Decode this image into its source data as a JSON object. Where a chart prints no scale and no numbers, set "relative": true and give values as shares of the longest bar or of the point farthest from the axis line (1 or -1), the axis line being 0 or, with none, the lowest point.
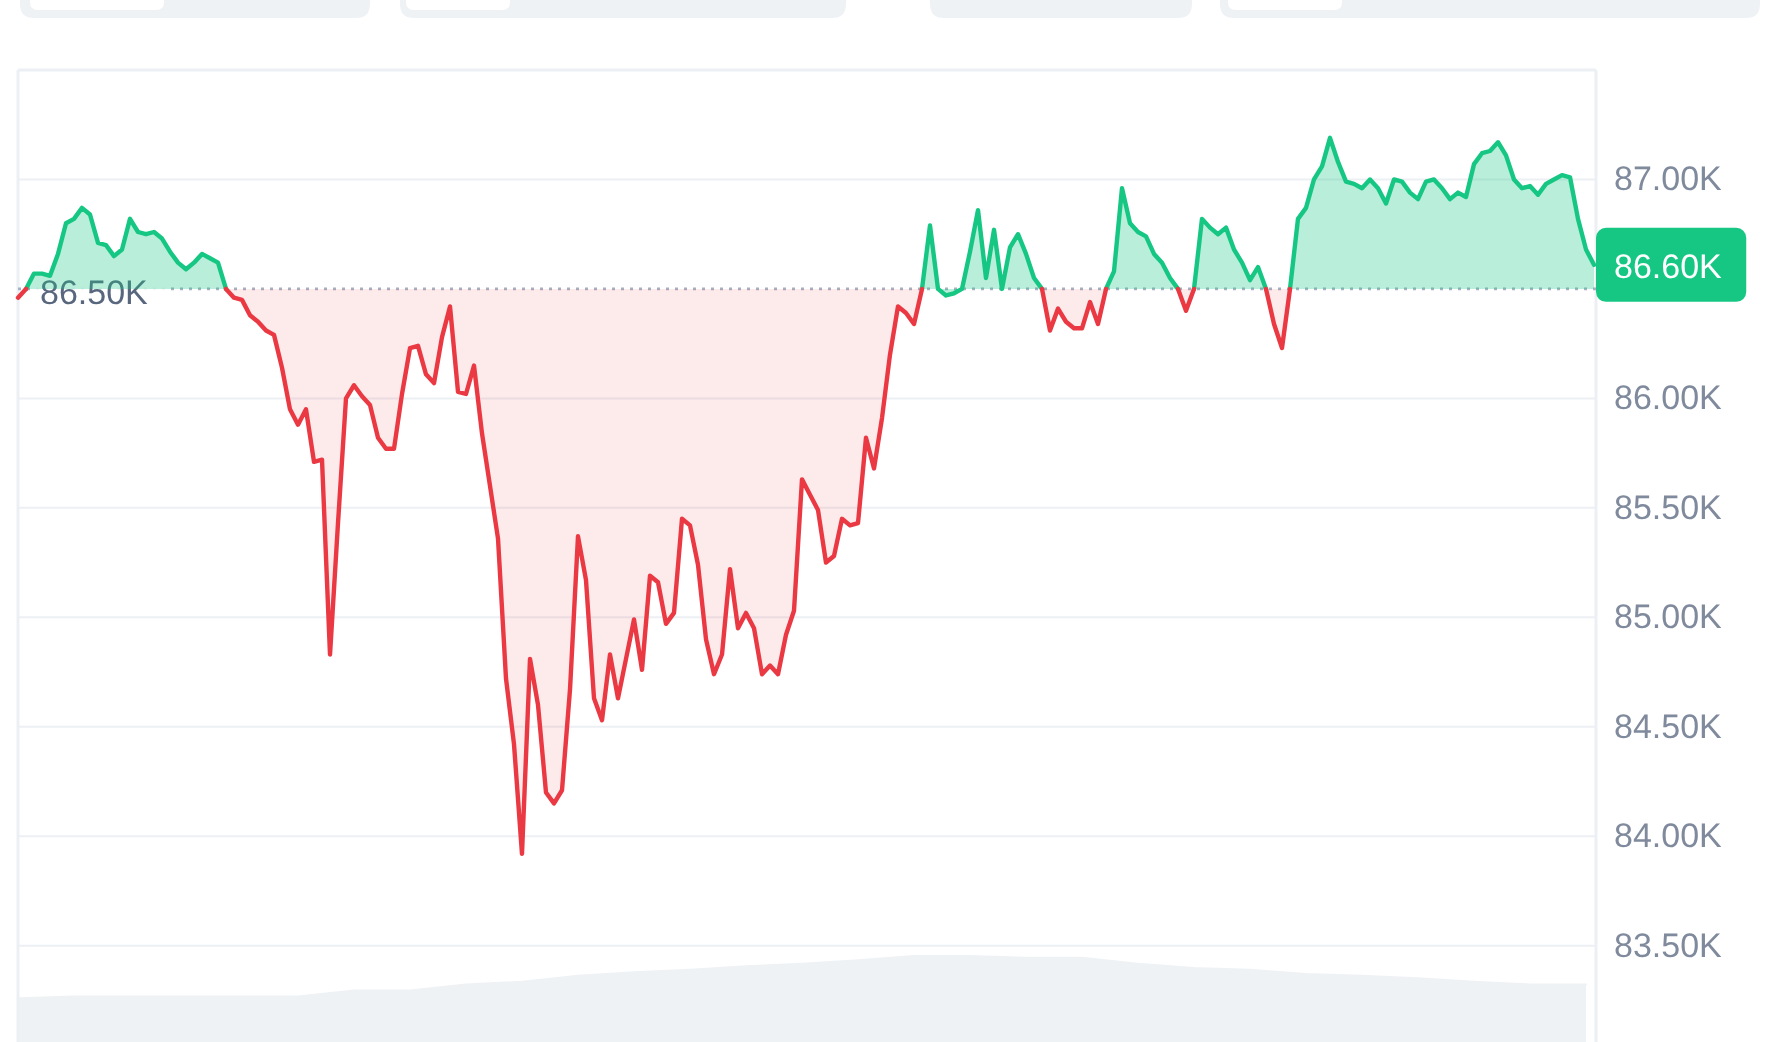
{
  "chart_data": [
    {
      "type": "area",
      "tick_labels": "y",
      "grid": "y",
      "categories": [
        null,
        null,
        null,
        null,
        null,
        null,
        null,
        null,
        null,
        null,
        null,
        null,
        null,
        null,
        null,
        null,
        null,
        null,
        null,
        null,
        null,
        null,
        null,
        null,
        null,
        null,
        null,
        null,
        null,
        null,
        null,
        null,
        null,
        null,
        null,
        null,
        null,
        null,
        null,
        null,
        null,
        null,
        null,
        null,
        null,
        null,
        null,
        null,
        null,
        null,
        null,
        null,
        null,
        null,
        null,
        null,
        null,
        null,
        null,
        null,
        null,
        null,
        null,
        null,
        null,
        null,
        null,
        null,
        null,
        null,
        null,
        null,
        null,
        null,
        null,
        null,
        null,
        null,
        null,
        null,
        null,
        null,
        null,
        null,
        null,
        null,
        null,
        null,
        null,
        null,
        null,
        null,
        null,
        null,
        null,
        null,
        null,
        null,
        null,
        null,
        null,
        null,
        null,
        null,
        null,
        null,
        null,
        null,
        null,
        null,
        null,
        null,
        null,
        null,
        null,
        null,
        null,
        null,
        null,
        null,
        null,
        null,
        null,
        null,
        null,
        null,
        null,
        null,
        null,
        null,
        null,
        null,
        null,
        null,
        null,
        null,
        null,
        null,
        null,
        null,
        null,
        null,
        null,
        null,
        null,
        null,
        null,
        null,
        null,
        null,
        null,
        null,
        null,
        null,
        null,
        null,
        null,
        null,
        null,
        null,
        null,
        null,
        null,
        null,
        null,
        null,
        null,
        null,
        null,
        null,
        null,
        null,
        null,
        null,
        null,
        null,
        null,
        null,
        null,
        null,
        null,
        null,
        null,
        null,
        null,
        null,
        null,
        null,
        null,
        null,
        null,
        null,
        null,
        null,
        null,
        null,
        null,
        null
      ],
      "series": [
        {
          "color": "#16c784",
          "values": [
            null,
            86500,
            86570,
            86570,
            86560,
            86660,
            86800,
            86820,
            86870,
            86840,
            86710,
            86700,
            86650,
            86680,
            86820,
            86760,
            86750,
            86760,
            86730,
            86670,
            86620,
            86590,
            86620,
            86660,
            86640,
            86620,
            86500,
            null,
            null,
            null,
            null,
            null,
            null,
            null,
            null,
            null,
            null,
            null,
            null,
            null,
            null,
            null,
            null,
            null,
            null,
            null,
            null,
            null,
            null,
            null,
            null,
            null,
            null,
            null,
            null,
            null,
            null,
            null,
            null,
            null,
            null,
            null,
            null,
            null,
            null,
            null,
            null,
            null,
            null,
            null,
            null,
            null,
            null,
            null,
            null,
            null,
            null,
            null,
            null,
            null,
            null,
            null,
            null,
            null,
            null,
            null,
            null,
            null,
            null,
            null,
            null,
            null,
            null,
            null,
            null,
            null,
            null,
            null,
            null,
            null,
            null,
            null,
            null,
            null,
            null,
            null,
            null,
            null,
            null,
            null,
            null,
            null,
            null,
            86500,
            86790,
            86500,
            86470,
            86480,
            86500,
            86670,
            86860,
            86550,
            86770,
            86500,
            86690,
            86750,
            86660,
            86550,
            86500,
            null,
            null,
            null,
            null,
            null,
            null,
            null,
            86500,
            86580,
            86960,
            86800,
            86760,
            86740,
            86660,
            86620,
            86550,
            86500,
            null,
            86500,
            86820,
            86780,
            86750,
            86780,
            86680,
            86620,
            86540,
            86600,
            86500,
            null,
            null,
            86500,
            86820,
            86870,
            87000,
            87060,
            87190,
            87080,
            86990,
            86980,
            86960,
            87000,
            86960,
            86890,
            87000,
            86990,
            86940,
            86910,
            86990,
            87000,
            86960,
            86910,
            86940,
            86920,
            87070,
            87120,
            87130,
            87170,
            87110,
            87000,
            86960,
            86970,
            86930,
            86980,
            87000,
            87020,
            87010,
            86820,
            86680,
            86610
          ]
        },
        {
          "type": "line",
          "color": "#ea3943",
          "values": [
            86460,
            86500,
            null,
            null,
            null,
            null,
            null,
            null,
            null,
            null,
            null,
            null,
            null,
            null,
            null,
            null,
            null,
            null,
            null,
            null,
            null,
            null,
            null,
            null,
            null,
            null,
            86500,
            86460,
            86450,
            86380,
            86350,
            86310,
            86290,
            86140,
            85950,
            85880,
            85950,
            85710,
            85720,
            84830,
            85430,
            86000,
            86060,
            86010,
            85970,
            85820,
            85770,
            85770,
            86020,
            86230,
            86240,
            86110,
            86070,
            86280,
            86420,
            86030,
            86020,
            86150,
            85840,
            85600,
            85360,
            84720,
            84420,
            83920,
            84810,
            84600,
            84200,
            84150,
            84210,
            84670,
            85370,
            85170,
            84630,
            84530,
            84830,
            84630,
            84810,
            84990,
            84760,
            85190,
            85160,
            84970,
            85020,
            85450,
            85420,
            85240,
            84900,
            84740,
            84830,
            85220,
            84950,
            85020,
            84950,
            84740,
            84780,
            84740,
            84920,
            85030,
            85630,
            85560,
            85490,
            85250,
            85280,
            85450,
            85420,
            85430,
            85820,
            85680,
            85910,
            86200,
            86420,
            86390,
            86340,
            86500,
            null,
            null,
            null,
            null,
            null,
            null,
            null,
            null,
            null,
            null,
            null,
            null,
            null,
            null,
            86500,
            86310,
            86410,
            86350,
            86320,
            86320,
            86440,
            86340,
            86500,
            null,
            null,
            null,
            null,
            null,
            null,
            null,
            null,
            86500,
            86400,
            86500,
            null,
            null,
            null,
            null,
            null,
            null,
            null,
            null,
            86500,
            86340,
            86230,
            86500,
            null,
            null,
            null,
            null,
            null,
            null,
            null,
            null,
            null,
            null,
            null,
            null,
            null,
            null,
            null,
            null,
            null,
            null,
            null,
            null,
            null,
            null,
            null,
            null,
            null,
            null,
            null,
            null,
            null,
            null,
            null,
            null,
            null,
            null,
            null,
            null,
            null,
            null
          ],
          "lower": [
            null,
            null,
            null,
            null,
            null,
            null,
            null,
            null,
            null,
            null,
            null,
            null,
            null,
            null,
            null,
            null,
            null,
            null,
            null,
            null,
            null,
            null,
            null,
            null,
            null,
            null,
            86500,
            86460,
            86450,
            86380,
            86350,
            86310,
            86290,
            86140,
            85950,
            85880,
            85950,
            85710,
            85720,
            84830,
            85430,
            86000,
            86060,
            86010,
            85970,
            85820,
            85770,
            85770,
            86020,
            86230,
            86240,
            86110,
            86070,
            86280,
            86420,
            86030,
            86020,
            86150,
            85840,
            85600,
            85360,
            84720,
            84420,
            83920,
            84810,
            84600,
            84200,
            84150,
            84210,
            84670,
            85370,
            85170,
            84630,
            84530,
            84830,
            84630,
            84810,
            84990,
            84760,
            85190,
            85160,
            84970,
            85020,
            85450,
            85420,
            85240,
            84900,
            84740,
            84830,
            85220,
            84950,
            85020,
            84950,
            84740,
            84780,
            84740,
            84920,
            85030,
            85630,
            85560,
            85490,
            85250,
            85280,
            85450,
            85420,
            85430,
            85820,
            85680,
            85910,
            86200,
            86420,
            86390,
            86340,
            86500,
            null,
            null,
            null,
            null,
            null,
            null,
            null,
            null,
            null,
            null,
            null,
            null,
            null,
            null,
            86500,
            86310,
            86410,
            86350,
            86320,
            86320,
            86440,
            86340,
            86500,
            null,
            null,
            null,
            null,
            null,
            null,
            null,
            null,
            86500,
            86400,
            86500,
            null,
            null,
            null,
            null,
            null,
            null,
            null,
            null,
            86500,
            86340,
            86230,
            86500,
            null,
            null,
            null,
            null,
            null,
            null,
            null,
            null,
            null,
            null,
            null,
            null,
            null,
            null,
            null,
            null,
            null,
            null,
            null,
            null,
            null,
            null,
            null,
            null,
            null,
            null,
            null,
            null,
            null,
            null,
            null,
            null,
            null,
            null,
            null,
            null,
            null,
            null
          ],
          "upper": [
            null,
            null,
            null,
            null,
            null,
            null,
            null,
            null,
            null,
            null,
            null,
            null,
            null,
            null,
            null,
            null,
            null,
            null,
            null,
            null,
            null,
            null,
            null,
            null,
            null,
            null,
            86500,
            86500,
            86500,
            86500,
            86500,
            86500,
            86500,
            86500,
            86500,
            86500,
            86500,
            86500,
            86500,
            86500,
            86500,
            86500,
            86500,
            86500,
            86500,
            86500,
            86500,
            86500,
            86500,
            86500,
            86500,
            86500,
            86500,
            86500,
            86500,
            86500,
            86500,
            86500,
            86500,
            86500,
            86500,
            86500,
            86500,
            86500,
            86500,
            86500,
            86500,
            86500,
            86500,
            86500,
            86500,
            86500,
            86500,
            86500,
            86500,
            86500,
            86500,
            86500,
            86500,
            86500,
            86500,
            86500,
            86500,
            86500,
            86500,
            86500,
            86500,
            86500,
            86500,
            86500,
            86500,
            86500,
            86500,
            86500,
            86500,
            86500,
            86500,
            86500,
            86500,
            86500,
            86500,
            86500,
            86500,
            86500,
            86500,
            86500,
            86500,
            86500,
            86500,
            86500,
            86500,
            86500,
            86500,
            86500,
            null,
            null,
            null,
            null,
            null,
            null,
            null,
            null,
            null,
            null,
            null,
            null,
            null,
            null,
            86500,
            86500,
            86500,
            86500,
            86500,
            86500,
            86500,
            86500,
            86500,
            null,
            null,
            null,
            null,
            null,
            null,
            null,
            null,
            86500,
            86500,
            86500,
            null,
            null,
            null,
            null,
            null,
            null,
            null,
            null,
            86500,
            86500,
            86500,
            86500,
            null,
            null,
            null,
            null,
            null,
            null,
            null,
            null,
            null,
            null,
            null,
            null,
            null,
            null,
            null,
            null,
            null,
            null,
            null,
            null,
            null,
            null,
            null,
            null,
            null,
            null,
            null,
            null,
            null,
            null,
            null,
            null,
            null,
            null,
            null,
            null,
            null,
            null
          ]
        }
      ],
      "ylim": [
        83060,
        87500
      ],
      "yticks": [
        {
          "value": 83500,
          "label": "83.50K"
        },
        {
          "value": 84000,
          "label": "84.00K"
        },
        {
          "value": 84500,
          "label": "84.50K"
        },
        {
          "value": 85000,
          "label": "85.00K"
        },
        {
          "value": 85500,
          "label": "85.50K"
        },
        {
          "value": 86000,
          "label": "86.00K"
        },
        {
          "value": 87000,
          "label": "87.00K"
        }
      ],
      "ref_lines": [
        {
          "axis": "y",
          "value": 86500,
          "label": "86.50K",
          "color": "#a6b0c3",
          "line_style": "dotted"
        }
      ],
      "annotations": [
        "86.60K"
      ]
    },
    {
      "type": "area",
      "relative": true,
      "color": "#eff2f5",
      "categories": [
        null,
        null,
        null,
        null,
        null,
        null,
        null,
        null,
        null,
        null,
        null,
        null,
        null,
        null,
        null,
        null,
        null,
        null,
        null,
        null,
        null,
        null,
        null,
        null,
        null,
        null,
        null,
        null,
        null
      ],
      "values": [
        0.51,
        0.53,
        0.53,
        0.53,
        0.53,
        0.53,
        0.6,
        0.6,
        0.67,
        0.7,
        0.77,
        0.81,
        0.84,
        0.88,
        0.91,
        0.95,
        1,
        1,
        0.98,
        0.98,
        0.91,
        0.86,
        0.84,
        0.79,
        0.77,
        0.74,
        0.7,
        0.67,
        0.67
      ]
    }
  ]
}
